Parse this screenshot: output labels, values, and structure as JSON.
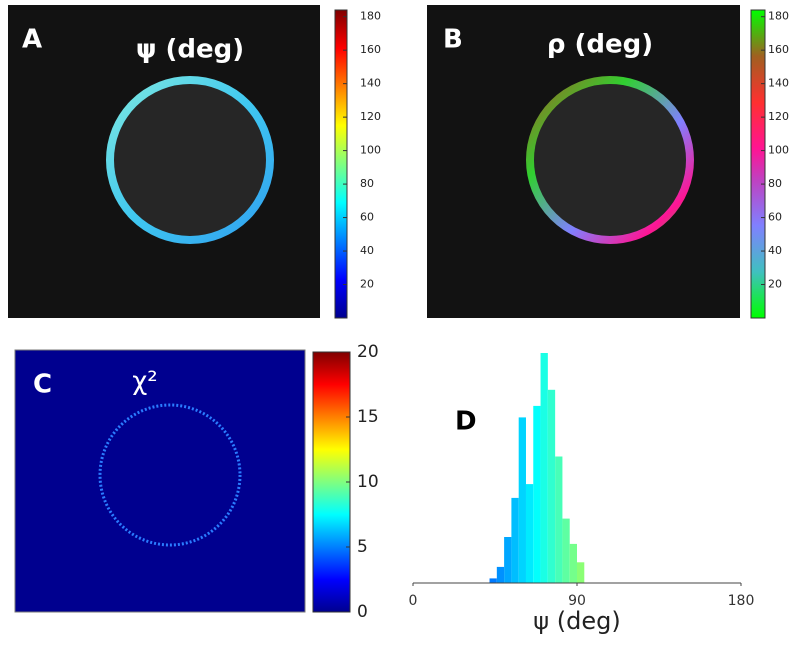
{
  "chart_data": [
    {
      "type": "image",
      "label": "A",
      "title": "ψ (deg)",
      "colormap": "jet",
      "clim": [
        0,
        184
      ],
      "cticks": [
        20,
        40,
        60,
        80,
        100,
        120,
        140,
        160,
        180
      ]
    },
    {
      "type": "image",
      "label": "B",
      "title": "ρ (deg)",
      "colormap": "hsv",
      "clim": [
        0,
        184
      ],
      "cticks": [
        20,
        40,
        60,
        80,
        100,
        120,
        140,
        160,
        180
      ]
    },
    {
      "type": "image",
      "label": "C",
      "title": "χ²",
      "colormap": "jet",
      "clim": [
        0,
        20
      ],
      "cticks": [
        0,
        5,
        10,
        15,
        20
      ]
    },
    {
      "type": "histogram",
      "label": "D",
      "xlabel": "ψ (deg)",
      "colormap": "jet",
      "xlim": [
        0,
        180
      ],
      "xticks": [
        0,
        90,
        180
      ],
      "ylim": [
        0,
        100
      ],
      "bins": [
        42,
        46,
        50,
        54,
        58,
        62,
        66,
        70,
        74,
        78,
        82,
        86,
        90,
        94
      ],
      "counts": [
        2,
        7,
        20,
        37,
        72,
        43,
        77,
        100,
        84,
        55,
        28,
        17,
        9
      ]
    }
  ]
}
